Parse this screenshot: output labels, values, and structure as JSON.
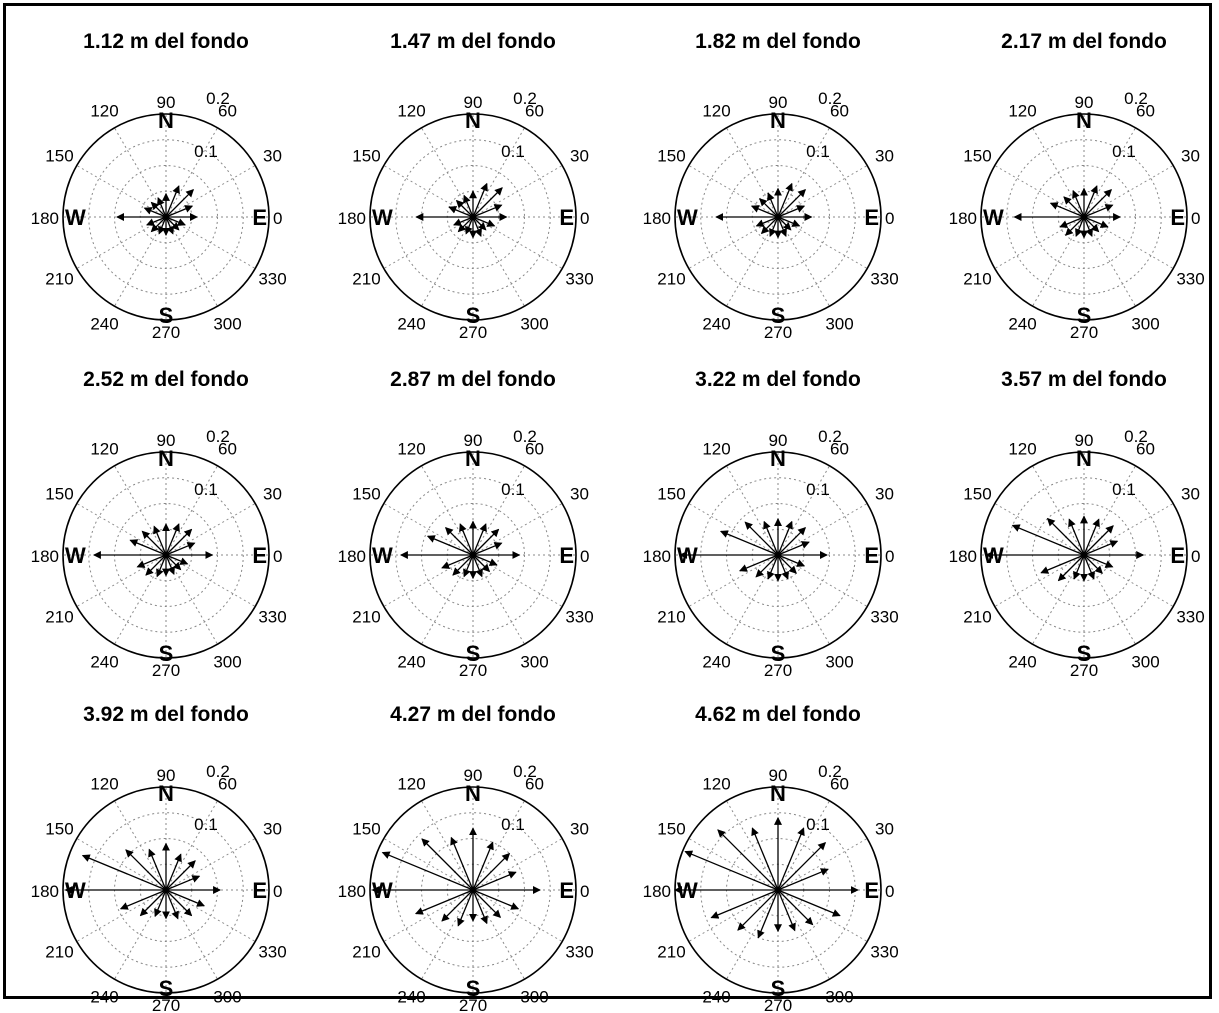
{
  "chart_data": {
    "type": "polar-rose",
    "description_units": "vector magnitude on radial axis",
    "radial_ticks": [
      "0.1",
      "0.2"
    ],
    "rmax": 0.2,
    "angle_ticks": [
      "0",
      "30",
      "60",
      "90",
      "120",
      "150",
      "180",
      "210",
      "240",
      "270",
      "300",
      "330"
    ],
    "cardinals": {
      "north": "N",
      "south": "S",
      "east": "E",
      "west": "W"
    },
    "directions_deg": [
      0,
      22.5,
      45,
      67.5,
      90,
      112.5,
      135,
      157.5,
      180,
      202.5,
      225,
      247.5,
      270,
      292.5,
      315,
      337.5
    ],
    "panels": [
      {
        "title": "1.12 m del fondo",
        "magnitudes": [
          0.06,
          0.055,
          0.075,
          0.065,
          0.045,
          0.04,
          0.04,
          0.045,
          0.095,
          0.04,
          0.04,
          0.035,
          0.035,
          0.035,
          0.035,
          0.04
        ]
      },
      {
        "title": "1.47 m del fondo",
        "magnitudes": [
          0.065,
          0.06,
          0.08,
          0.07,
          0.05,
          0.045,
          0.045,
          0.05,
          0.11,
          0.04,
          0.04,
          0.035,
          0.04,
          0.04,
          0.035,
          0.045
        ]
      },
      {
        "title": "1.82 m del fondo",
        "magnitudes": [
          0.065,
          0.055,
          0.075,
          0.07,
          0.055,
          0.05,
          0.05,
          0.055,
          0.12,
          0.045,
          0.045,
          0.04,
          0.04,
          0.04,
          0.035,
          0.045
        ]
      },
      {
        "title": "2.17 m del fondo",
        "magnitudes": [
          0.07,
          0.06,
          0.075,
          0.065,
          0.055,
          0.055,
          0.055,
          0.07,
          0.135,
          0.05,
          0.05,
          0.04,
          0.04,
          0.04,
          0.04,
          0.05
        ]
      },
      {
        "title": "2.52 m del fondo",
        "magnitudes": [
          0.09,
          0.06,
          0.07,
          0.065,
          0.06,
          0.06,
          0.065,
          0.075,
          0.14,
          0.06,
          0.055,
          0.045,
          0.04,
          0.04,
          0.04,
          0.045
        ]
      },
      {
        "title": "2.87 m del fondo",
        "magnitudes": [
          0.09,
          0.06,
          0.07,
          0.065,
          0.065,
          0.065,
          0.075,
          0.095,
          0.14,
          0.065,
          0.055,
          0.045,
          0.045,
          0.045,
          0.045,
          0.05
        ]
      },
      {
        "title": "3.22 m del fondo",
        "magnitudes": [
          0.095,
          0.065,
          0.075,
          0.07,
          0.07,
          0.07,
          0.09,
          0.12,
          0.19,
          0.08,
          0.06,
          0.05,
          0.05,
          0.05,
          0.05,
          0.055
        ]
      },
      {
        "title": "3.57 m del fondo",
        "magnitudes": [
          0.115,
          0.07,
          0.08,
          0.075,
          0.075,
          0.075,
          0.1,
          0.15,
          0.19,
          0.09,
          0.07,
          0.05,
          0.05,
          0.05,
          0.05,
          0.06
        ]
      },
      {
        "title": "3.92 m del fondo",
        "magnitudes": [
          0.105,
          0.07,
          0.08,
          0.075,
          0.09,
          0.085,
          0.11,
          0.175,
          0.195,
          0.095,
          0.07,
          0.055,
          0.055,
          0.06,
          0.07,
          0.08
        ]
      },
      {
        "title": "4.27 m del fondo",
        "magnitudes": [
          0.13,
          0.09,
          0.1,
          0.1,
          0.12,
          0.11,
          0.14,
          0.19,
          0.195,
          0.12,
          0.085,
          0.075,
          0.06,
          0.07,
          0.075,
          0.095
        ]
      },
      {
        "title": "4.62 m del fondo",
        "magnitudes": [
          0.155,
          0.105,
          0.13,
          0.13,
          0.14,
          0.13,
          0.165,
          0.195,
          0.2,
          0.14,
          0.11,
          0.1,
          0.08,
          0.085,
          0.095,
          0.13
        ]
      }
    ]
  }
}
